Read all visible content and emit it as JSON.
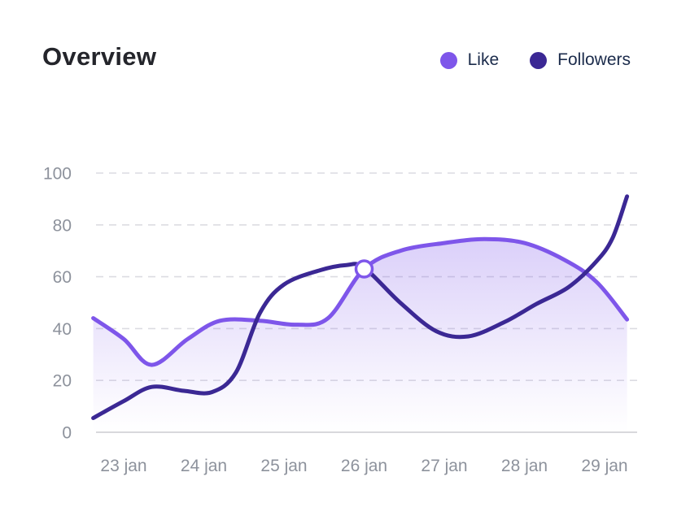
{
  "header": {
    "title": "Overview",
    "legend": [
      {
        "label": "Like",
        "color": "#7e56ea"
      },
      {
        "label": "Followers",
        "color": "#3b2894"
      }
    ]
  },
  "chart_data": {
    "type": "line",
    "title": "Overview",
    "x_unit": "date (January)",
    "x_ticks": [
      "23 jan",
      "24 jan",
      "25 jan",
      "26 jan",
      "27 jan",
      "28 jan",
      "29 jan"
    ],
    "x_tick_days": [
      23,
      24,
      25,
      26,
      27,
      28,
      29
    ],
    "y_ticks": [
      0,
      20,
      40,
      60,
      80,
      100
    ],
    "ylim": [
      0,
      100
    ],
    "grid": "horizontal-dashed",
    "legend_position": "top-right",
    "axis_label_color": "#8d929c",
    "grid_color": "#dcdce2",
    "baseline_color": "#d8d8dc",
    "series": [
      {
        "name": "Like",
        "color": "#7e56ea",
        "area_fill": true,
        "line_width": 5,
        "points": [
          [
            22.62,
            44
          ],
          [
            23.0,
            36
          ],
          [
            23.35,
            26
          ],
          [
            23.8,
            36
          ],
          [
            24.2,
            43
          ],
          [
            24.7,
            43
          ],
          [
            25.15,
            41.5
          ],
          [
            25.55,
            44
          ],
          [
            26.0,
            63
          ],
          [
            26.45,
            70
          ],
          [
            27.0,
            73
          ],
          [
            27.5,
            74.5
          ],
          [
            28.0,
            73
          ],
          [
            28.5,
            66.5
          ],
          [
            28.9,
            58
          ],
          [
            29.28,
            43.5
          ]
        ]
      },
      {
        "name": "Followers",
        "color": "#3b2894",
        "area_fill": false,
        "line_width": 5,
        "points": [
          [
            22.62,
            5.5
          ],
          [
            23.0,
            12
          ],
          [
            23.35,
            17.5
          ],
          [
            23.75,
            16
          ],
          [
            24.1,
            15.5
          ],
          [
            24.4,
            23
          ],
          [
            24.7,
            46
          ],
          [
            25.0,
            57
          ],
          [
            25.45,
            62.5
          ],
          [
            25.78,
            64.5
          ],
          [
            26.0,
            63.5
          ],
          [
            26.45,
            50
          ],
          [
            26.9,
            39
          ],
          [
            27.3,
            37
          ],
          [
            27.75,
            42.5
          ],
          [
            28.15,
            49.5
          ],
          [
            28.55,
            56
          ],
          [
            28.9,
            66
          ],
          [
            29.1,
            75
          ],
          [
            29.28,
            91
          ]
        ]
      }
    ],
    "highlight_marker": {
      "series": "Like",
      "x": 26,
      "y": 63
    }
  }
}
